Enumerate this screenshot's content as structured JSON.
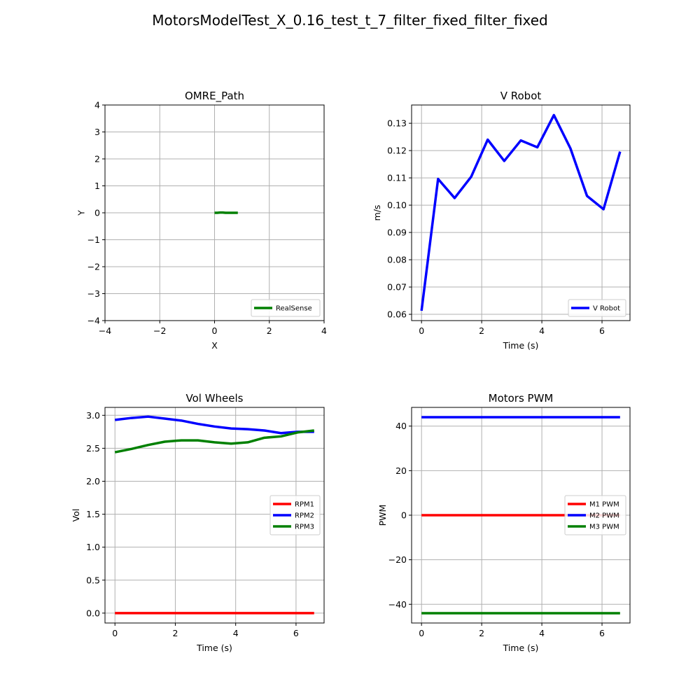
{
  "figure": {
    "suptitle": "MotorsModelTest_X_0.16_test_t_7_filter_fixed_filter_fixed"
  },
  "colors": {
    "red": "#ff0000",
    "blue": "#0000ff",
    "green": "#008000",
    "grid": "#b0b0b0",
    "axis": "#000000"
  },
  "chart_data": [
    {
      "id": "path",
      "type": "line",
      "title": "OMRE_Path",
      "xlabel": "X",
      "ylabel": "Y",
      "xlim": [
        -4,
        4
      ],
      "ylim": [
        -4,
        4
      ],
      "xticks": [
        -4,
        -2,
        0,
        2,
        4
      ],
      "xtick_labels": [
        "−4",
        "−2",
        "0",
        "2",
        "4"
      ],
      "yticks": [
        -4,
        -3,
        -2,
        -1,
        0,
        1,
        2,
        3,
        4
      ],
      "ytick_labels": [
        "−4",
        "−3",
        "−2",
        "−1",
        "0",
        "1",
        "2",
        "3",
        "4"
      ],
      "grid": true,
      "legend": "lower right",
      "series": [
        {
          "name": "RealSense",
          "color": "green",
          "x": [
            0,
            0.1,
            0.2,
            0.3,
            0.4,
            0.5,
            0.6,
            0.7,
            0.85
          ],
          "y": [
            0,
            0,
            0.01,
            0.01,
            0,
            0,
            0,
            0,
            0
          ]
        }
      ]
    },
    {
      "id": "vrobot",
      "type": "line",
      "title": "V Robot",
      "xlabel": "Time (s)",
      "ylabel": "m/s",
      "xlim": [
        -0.33,
        6.93
      ],
      "ylim": [
        0.0577,
        0.1367
      ],
      "xticks": [
        0,
        2,
        4,
        6
      ],
      "xtick_labels": [
        "0",
        "2",
        "4",
        "6"
      ],
      "yticks": [
        0.06,
        0.07,
        0.08,
        0.09,
        0.1,
        0.11,
        0.12,
        0.13
      ],
      "ytick_labels": [
        "0.06",
        "0.07",
        "0.08",
        "0.09",
        "0.10",
        "0.11",
        "0.12",
        "0.13"
      ],
      "grid": true,
      "legend": "lower right",
      "series": [
        {
          "name": "V Robot",
          "color": "blue",
          "x": [
            0,
            0.55,
            1.1,
            1.65,
            2.2,
            2.75,
            3.3,
            3.85,
            4.4,
            4.95,
            5.5,
            6.05,
            6.6
          ],
          "y": [
            0.0613,
            0.1096,
            0.1026,
            0.1104,
            0.124,
            0.1162,
            0.1237,
            0.1212,
            0.133,
            0.1208,
            0.1034,
            0.0985,
            0.1196
          ]
        }
      ]
    },
    {
      "id": "volwheels",
      "type": "line",
      "title": "Vol Wheels",
      "xlabel": "Time (s)",
      "ylabel": "Vol",
      "xlim": [
        -0.33,
        6.93
      ],
      "ylim": [
        -0.15,
        3.12
      ],
      "xticks": [
        0,
        2,
        4,
        6
      ],
      "xtick_labels": [
        "0",
        "2",
        "4",
        "6"
      ],
      "yticks": [
        0,
        0.5,
        1.0,
        1.5,
        2.0,
        2.5,
        3.0
      ],
      "ytick_labels": [
        "0.0",
        "0.5",
        "1.0",
        "1.5",
        "2.0",
        "2.5",
        "3.0"
      ],
      "grid": true,
      "legend": "center right",
      "series": [
        {
          "name": "RPM1",
          "color": "red",
          "x": [
            0,
            0.55,
            1.1,
            1.65,
            2.2,
            2.75,
            3.3,
            3.85,
            4.4,
            4.95,
            5.5,
            6.05,
            6.6
          ],
          "y": [
            0,
            0,
            0,
            0,
            0,
            0,
            0,
            0,
            0,
            0,
            0,
            0,
            0
          ]
        },
        {
          "name": "RPM2",
          "color": "blue",
          "x": [
            0,
            0.55,
            1.1,
            1.65,
            2.2,
            2.75,
            3.3,
            3.85,
            4.4,
            4.95,
            5.5,
            6.05,
            6.6
          ],
          "y": [
            2.93,
            2.96,
            2.98,
            2.95,
            2.92,
            2.87,
            2.83,
            2.8,
            2.79,
            2.77,
            2.73,
            2.75,
            2.75
          ]
        },
        {
          "name": "RPM3",
          "color": "green",
          "x": [
            0,
            0.55,
            1.1,
            1.65,
            2.2,
            2.75,
            3.3,
            3.85,
            4.4,
            4.95,
            5.5,
            6.05,
            6.6
          ],
          "y": [
            2.44,
            2.49,
            2.55,
            2.6,
            2.62,
            2.62,
            2.59,
            2.57,
            2.59,
            2.66,
            2.68,
            2.74,
            2.77
          ]
        }
      ]
    },
    {
      "id": "pwm",
      "type": "line",
      "title": "Motors PWM",
      "xlabel": "Time (s)",
      "ylabel": "PWM",
      "xlim": [
        -0.33,
        6.93
      ],
      "ylim": [
        -48.4,
        48.4
      ],
      "xticks": [
        0,
        2,
        4,
        6
      ],
      "xtick_labels": [
        "0",
        "2",
        "4",
        "6"
      ],
      "yticks": [
        -40,
        -20,
        0,
        20,
        40
      ],
      "ytick_labels": [
        "−40",
        "−20",
        "0",
        "20",
        "40"
      ],
      "grid": true,
      "legend": "center right",
      "series": [
        {
          "name": "M1 PWM",
          "color": "red",
          "x": [
            0,
            6.6
          ],
          "y": [
            0,
            0
          ]
        },
        {
          "name": "M2 PWM",
          "color": "blue",
          "x": [
            0,
            6.6
          ],
          "y": [
            44,
            44
          ]
        },
        {
          "name": "M3 PWM",
          "color": "green",
          "x": [
            0,
            6.6
          ],
          "y": [
            -44,
            -44
          ]
        }
      ]
    }
  ]
}
